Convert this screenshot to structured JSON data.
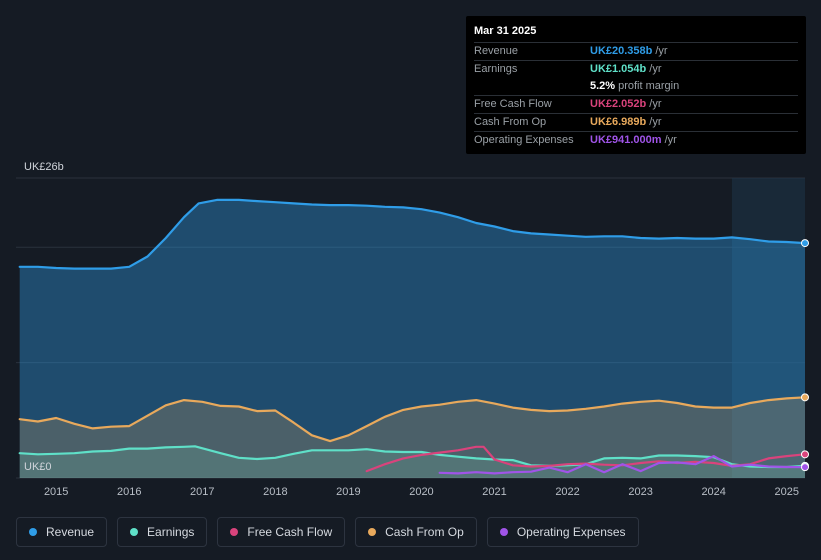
{
  "chart_data": {
    "type": "area",
    "ylabel_top": "UK£26b",
    "ylabel_bottom": "UK£0",
    "ylim": [
      0,
      26
    ],
    "xlim": [
      2014.45,
      2025.25
    ],
    "x_ticks": [
      "2015",
      "2016",
      "2017",
      "2018",
      "2019",
      "2020",
      "2021",
      "2022",
      "2023",
      "2024",
      "2025"
    ],
    "x_tick_values": [
      2015,
      2016,
      2017,
      2018,
      2019,
      2020,
      2021,
      2022,
      2023,
      2024,
      2025
    ],
    "forecast_start": 2024.25,
    "series": [
      {
        "name": "Revenue",
        "color": "#2f9de8",
        "fill": true,
        "points": [
          [
            2014.5,
            18.3
          ],
          [
            2014.75,
            18.3
          ],
          [
            2015.0,
            18.2
          ],
          [
            2015.25,
            18.15
          ],
          [
            2015.5,
            18.15
          ],
          [
            2015.75,
            18.15
          ],
          [
            2016.0,
            18.3
          ],
          [
            2016.25,
            19.2
          ],
          [
            2016.5,
            20.8
          ],
          [
            2016.75,
            22.6
          ],
          [
            2016.95,
            23.8
          ],
          [
            2017.2,
            24.1
          ],
          [
            2017.5,
            24.1
          ],
          [
            2017.75,
            24.0
          ],
          [
            2018.0,
            23.9
          ],
          [
            2018.25,
            23.8
          ],
          [
            2018.5,
            23.7
          ],
          [
            2018.75,
            23.65
          ],
          [
            2019.0,
            23.65
          ],
          [
            2019.25,
            23.6
          ],
          [
            2019.5,
            23.5
          ],
          [
            2019.75,
            23.45
          ],
          [
            2020.0,
            23.3
          ],
          [
            2020.25,
            23.0
          ],
          [
            2020.5,
            22.6
          ],
          [
            2020.75,
            22.1
          ],
          [
            2021.0,
            21.8
          ],
          [
            2021.25,
            21.4
          ],
          [
            2021.5,
            21.2
          ],
          [
            2021.75,
            21.1
          ],
          [
            2022.0,
            21.0
          ],
          [
            2022.25,
            20.9
          ],
          [
            2022.5,
            20.95
          ],
          [
            2022.75,
            20.95
          ],
          [
            2023.0,
            20.8
          ],
          [
            2023.25,
            20.75
          ],
          [
            2023.5,
            20.8
          ],
          [
            2023.75,
            20.75
          ],
          [
            2024.0,
            20.75
          ],
          [
            2024.25,
            20.85
          ],
          [
            2024.5,
            20.7
          ],
          [
            2024.75,
            20.5
          ],
          [
            2025.0,
            20.45
          ],
          [
            2025.25,
            20.36
          ]
        ]
      },
      {
        "name": "Earnings",
        "color": "#5fe0c8",
        "fill": true,
        "points": [
          [
            2014.5,
            2.15
          ],
          [
            2014.75,
            2.05
          ],
          [
            2015.0,
            2.1
          ],
          [
            2015.25,
            2.15
          ],
          [
            2015.5,
            2.3
          ],
          [
            2015.75,
            2.35
          ],
          [
            2016.0,
            2.55
          ],
          [
            2016.25,
            2.55
          ],
          [
            2016.5,
            2.65
          ],
          [
            2016.75,
            2.7
          ],
          [
            2016.9,
            2.75
          ],
          [
            2017.25,
            2.15
          ],
          [
            2017.5,
            1.75
          ],
          [
            2017.75,
            1.65
          ],
          [
            2018.0,
            1.75
          ],
          [
            2018.25,
            2.1
          ],
          [
            2018.5,
            2.4
          ],
          [
            2018.75,
            2.4
          ],
          [
            2019.0,
            2.4
          ],
          [
            2019.25,
            2.5
          ],
          [
            2019.5,
            2.3
          ],
          [
            2019.75,
            2.25
          ],
          [
            2020.0,
            2.25
          ],
          [
            2020.25,
            2.0
          ],
          [
            2020.5,
            1.85
          ],
          [
            2020.75,
            1.7
          ],
          [
            2021.0,
            1.6
          ],
          [
            2021.25,
            1.55
          ],
          [
            2021.5,
            1.1
          ],
          [
            2021.75,
            1.05
          ],
          [
            2022.0,
            1.1
          ],
          [
            2022.25,
            1.2
          ],
          [
            2022.5,
            1.7
          ],
          [
            2022.75,
            1.75
          ],
          [
            2023.0,
            1.7
          ],
          [
            2023.25,
            1.95
          ],
          [
            2023.5,
            1.95
          ],
          [
            2023.75,
            1.9
          ],
          [
            2024.0,
            1.8
          ],
          [
            2024.25,
            1.2
          ],
          [
            2024.5,
            1.0
          ],
          [
            2024.75,
            0.95
          ],
          [
            2025.0,
            0.95
          ],
          [
            2025.25,
            1.05
          ]
        ]
      },
      {
        "name": "Free Cash Flow",
        "color": "#d9437c",
        "fill": false,
        "points": [
          [
            2019.25,
            0.6
          ],
          [
            2019.5,
            1.2
          ],
          [
            2019.75,
            1.7
          ],
          [
            2020.0,
            2.0
          ],
          [
            2020.25,
            2.2
          ],
          [
            2020.5,
            2.4
          ],
          [
            2020.75,
            2.7
          ],
          [
            2020.85,
            2.7
          ],
          [
            2021.0,
            1.6
          ],
          [
            2021.25,
            1.1
          ],
          [
            2021.5,
            1.0
          ],
          [
            2021.75,
            1.05
          ],
          [
            2022.0,
            1.2
          ],
          [
            2022.25,
            1.25
          ],
          [
            2022.5,
            1.15
          ],
          [
            2022.75,
            1.1
          ],
          [
            2023.0,
            1.3
          ],
          [
            2023.25,
            1.45
          ],
          [
            2023.5,
            1.3
          ],
          [
            2023.75,
            1.4
          ],
          [
            2024.0,
            1.3
          ],
          [
            2024.25,
            1.05
          ],
          [
            2024.5,
            1.2
          ],
          [
            2024.75,
            1.7
          ],
          [
            2025.0,
            1.9
          ],
          [
            2025.25,
            2.05
          ]
        ]
      },
      {
        "name": "Cash From Op",
        "color": "#e8a95c",
        "fill": true,
        "points": [
          [
            2014.5,
            5.1
          ],
          [
            2014.75,
            4.9
          ],
          [
            2015.0,
            5.2
          ],
          [
            2015.25,
            4.7
          ],
          [
            2015.5,
            4.3
          ],
          [
            2015.75,
            4.45
          ],
          [
            2016.0,
            4.5
          ],
          [
            2016.25,
            5.4
          ],
          [
            2016.5,
            6.3
          ],
          [
            2016.75,
            6.75
          ],
          [
            2017.0,
            6.6
          ],
          [
            2017.25,
            6.25
          ],
          [
            2017.5,
            6.2
          ],
          [
            2017.75,
            5.8
          ],
          [
            2018.0,
            5.85
          ],
          [
            2018.25,
            4.8
          ],
          [
            2018.5,
            3.7
          ],
          [
            2018.75,
            3.2
          ],
          [
            2019.0,
            3.7
          ],
          [
            2019.25,
            4.5
          ],
          [
            2019.5,
            5.3
          ],
          [
            2019.75,
            5.9
          ],
          [
            2020.0,
            6.2
          ],
          [
            2020.25,
            6.35
          ],
          [
            2020.5,
            6.6
          ],
          [
            2020.75,
            6.75
          ],
          [
            2021.0,
            6.45
          ],
          [
            2021.25,
            6.1
          ],
          [
            2021.5,
            5.9
          ],
          [
            2021.75,
            5.8
          ],
          [
            2022.0,
            5.85
          ],
          [
            2022.25,
            6.0
          ],
          [
            2022.5,
            6.2
          ],
          [
            2022.75,
            6.45
          ],
          [
            2023.0,
            6.6
          ],
          [
            2023.25,
            6.7
          ],
          [
            2023.5,
            6.5
          ],
          [
            2023.75,
            6.2
          ],
          [
            2024.0,
            6.1
          ],
          [
            2024.25,
            6.1
          ],
          [
            2024.5,
            6.5
          ],
          [
            2024.75,
            6.75
          ],
          [
            2025.0,
            6.9
          ],
          [
            2025.25,
            6.99
          ]
        ]
      },
      {
        "name": "Operating Expenses",
        "color": "#a054e8",
        "fill": false,
        "points": [
          [
            2020.25,
            0.45
          ],
          [
            2020.5,
            0.4
          ],
          [
            2020.75,
            0.5
          ],
          [
            2021.0,
            0.4
          ],
          [
            2021.25,
            0.5
          ],
          [
            2021.5,
            0.55
          ],
          [
            2021.75,
            0.9
          ],
          [
            2022.0,
            0.5
          ],
          [
            2022.25,
            1.2
          ],
          [
            2022.5,
            0.5
          ],
          [
            2022.75,
            1.2
          ],
          [
            2023.0,
            0.6
          ],
          [
            2023.25,
            1.3
          ],
          [
            2023.5,
            1.35
          ],
          [
            2023.75,
            1.2
          ],
          [
            2024.0,
            1.9
          ],
          [
            2024.25,
            1.0
          ],
          [
            2024.5,
            1.15
          ],
          [
            2024.75,
            1.0
          ],
          [
            2025.0,
            0.95
          ],
          [
            2025.25,
            0.94
          ]
        ]
      }
    ]
  },
  "tooltip": {
    "date": "Mar 31 2025",
    "rows": [
      {
        "label": "Revenue",
        "value": "UK£20.358b",
        "unit": "/yr",
        "color": "#2f9de8"
      },
      {
        "label": "Earnings",
        "value": "UK£1.054b",
        "unit": "/yr",
        "color": "#5fe0c8"
      },
      {
        "label": "",
        "value": "5.2%",
        "unit": "profit margin",
        "color": "#ffffff"
      },
      {
        "label": "Free Cash Flow",
        "value": "UK£2.052b",
        "unit": "/yr",
        "color": "#d9437c"
      },
      {
        "label": "Cash From Op",
        "value": "UK£6.989b",
        "unit": "/yr",
        "color": "#e8a95c"
      },
      {
        "label": "Operating Expenses",
        "value": "UK£941.000m",
        "unit": "/yr",
        "color": "#a054e8"
      }
    ]
  },
  "legend": [
    {
      "label": "Revenue",
      "color": "#2f9de8"
    },
    {
      "label": "Earnings",
      "color": "#5fe0c8"
    },
    {
      "label": "Free Cash Flow",
      "color": "#d9437c"
    },
    {
      "label": "Cash From Op",
      "color": "#e8a95c"
    },
    {
      "label": "Operating Expenses",
      "color": "#a054e8"
    }
  ]
}
